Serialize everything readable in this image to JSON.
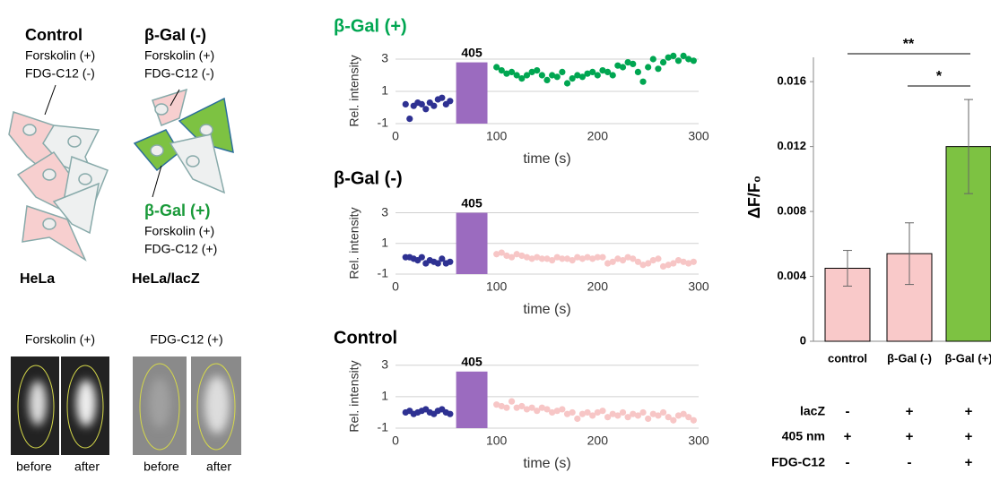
{
  "illustration": {
    "control": {
      "title": "Control",
      "lines": [
        "Forskolin (+)",
        "FDG-C12 (-)"
      ]
    },
    "gal_neg": {
      "title": "β-Gal (-)",
      "lines": [
        "Forskolin (+)",
        "FDG-C12 (-)"
      ]
    },
    "gal_pos": {
      "title": "β-Gal (+)",
      "lines": [
        "Forskolin (+)",
        "FDG-C12 (+)"
      ]
    },
    "cell_lines": [
      "HeLa",
      "HeLa/lacZ"
    ],
    "image_titles": [
      "Forskolin (+)",
      "FDG-C12 (+)"
    ],
    "image_labels": [
      "before",
      "after",
      "before",
      "after"
    ]
  },
  "chart_data": [
    {
      "type": "scatter",
      "title": "β-Gal (+)",
      "title_color": "#00a651",
      "x_label": "time (s)",
      "y_label": "Rel. intensity",
      "xlim": [
        0,
        300
      ],
      "xticks": [
        0,
        100,
        200,
        300
      ],
      "ylim": [
        -1,
        3.5
      ],
      "yticks": [
        -1,
        1,
        3
      ],
      "grid": true,
      "band": {
        "label": "405",
        "x": [
          60,
          91
        ],
        "y": [
          -1,
          2.8
        ],
        "color": "#9b6bbf"
      },
      "series": [
        {
          "color": "#2e3192",
          "x": [
            10,
            14,
            18,
            22,
            26,
            30,
            34,
            38,
            42,
            46,
            50,
            54
          ],
          "values": [
            0.2,
            -0.7,
            0.1,
            0.3,
            0.2,
            -0.1,
            0.3,
            0.1,
            0.5,
            0.6,
            0.2,
            0.4
          ]
        },
        {
          "color": "#00a651",
          "x": [
            100,
            105,
            110,
            115,
            120,
            125,
            130,
            135,
            140,
            145,
            150,
            155,
            160,
            165,
            170,
            175,
            180,
            185,
            190,
            195,
            200,
            205,
            210,
            215,
            220,
            225,
            230,
            235,
            240,
            245,
            250,
            255,
            260,
            265,
            270,
            275,
            280,
            285,
            290,
            295
          ],
          "values": [
            2.5,
            2.3,
            2.1,
            2.2,
            2.0,
            1.8,
            2.0,
            2.2,
            2.3,
            2.0,
            1.7,
            2.0,
            1.9,
            2.2,
            1.5,
            1.8,
            2.0,
            1.9,
            2.1,
            2.2,
            2.0,
            2.3,
            2.2,
            2.0,
            2.6,
            2.5,
            2.8,
            2.7,
            2.2,
            1.6,
            2.5,
            3.0,
            2.4,
            2.8,
            3.1,
            3.2,
            2.9,
            3.2,
            3.0,
            2.9
          ]
        }
      ]
    },
    {
      "type": "scatter",
      "title": "β-Gal (-)",
      "title_color": "#000000",
      "x_label": "time (s)",
      "y_label": "Rel. intensity",
      "xlim": [
        0,
        300
      ],
      "xticks": [
        0,
        100,
        200,
        300
      ],
      "ylim": [
        -1,
        3.5
      ],
      "yticks": [
        -1,
        1,
        3
      ],
      "grid": true,
      "band": {
        "label": "405",
        "x": [
          60,
          91
        ],
        "y": [
          -1,
          3
        ],
        "color": "#9b6bbf"
      },
      "series": [
        {
          "color": "#2e3192",
          "x": [
            10,
            14,
            18,
            22,
            26,
            30,
            34,
            38,
            42,
            46,
            50,
            54
          ],
          "values": [
            0.1,
            0.1,
            0,
            -0.1,
            0.1,
            -0.3,
            -0.1,
            -0.2,
            -0.3,
            0,
            -0.3,
            -0.2
          ]
        },
        {
          "color": "#f7c6c6",
          "x": [
            100,
            105,
            110,
            115,
            120,
            125,
            130,
            135,
            140,
            145,
            150,
            155,
            160,
            165,
            170,
            175,
            180,
            185,
            190,
            195,
            200,
            205,
            210,
            215,
            220,
            225,
            230,
            235,
            240,
            245,
            250,
            255,
            260,
            265,
            270,
            275,
            280,
            285,
            290,
            295
          ],
          "values": [
            0.3,
            0.4,
            0.2,
            0.1,
            0.3,
            0.2,
            0.1,
            0,
            0.1,
            0,
            0,
            -0.1,
            0.1,
            0,
            0,
            -0.1,
            0.1,
            0,
            0.1,
            0,
            0.1,
            0.1,
            -0.3,
            -0.2,
            0,
            -0.1,
            0.1,
            0,
            -0.2,
            -0.4,
            -0.3,
            -0.1,
            0,
            -0.5,
            -0.4,
            -0.3,
            -0.1,
            -0.2,
            -0.3,
            -0.2
          ]
        }
      ]
    },
    {
      "type": "scatter",
      "title": "Control",
      "title_color": "#000000",
      "x_label": "time (s)",
      "y_label": "Rel. intensity",
      "xlim": [
        0,
        300
      ],
      "xticks": [
        0,
        100,
        200,
        300
      ],
      "ylim": [
        -1,
        3.5
      ],
      "yticks": [
        -1,
        1,
        3
      ],
      "grid": true,
      "band": {
        "label": "405",
        "x": [
          60,
          91
        ],
        "y": [
          -1,
          2.6
        ],
        "color": "#9b6bbf"
      },
      "series": [
        {
          "color": "#2e3192",
          "x": [
            10,
            14,
            18,
            22,
            26,
            30,
            34,
            38,
            42,
            46,
            50,
            54
          ],
          "values": [
            0,
            0.1,
            -0.1,
            0,
            0.1,
            0.2,
            0,
            -0.1,
            0.1,
            0.2,
            0,
            -0.1
          ]
        },
        {
          "color": "#f7c6c6",
          "x": [
            100,
            105,
            110,
            115,
            120,
            125,
            130,
            135,
            140,
            145,
            150,
            155,
            160,
            165,
            170,
            175,
            180,
            185,
            190,
            195,
            200,
            205,
            210,
            215,
            220,
            225,
            230,
            235,
            240,
            245,
            250,
            255,
            260,
            265,
            270,
            275,
            280,
            285,
            290,
            295
          ],
          "values": [
            0.5,
            0.4,
            0.3,
            0.7,
            0.3,
            0.4,
            0.2,
            0.3,
            0.1,
            0.3,
            0.2,
            0,
            0.1,
            0.2,
            -0.1,
            0,
            -0.4,
            -0.1,
            0,
            -0.2,
            0,
            0.1,
            -0.3,
            -0.1,
            -0.2,
            0,
            -0.3,
            -0.1,
            -0.2,
            0,
            -0.4,
            -0.1,
            -0.2,
            0,
            -0.3,
            -0.5,
            -0.2,
            -0.1,
            -0.3,
            -0.5
          ]
        }
      ]
    },
    {
      "type": "bar",
      "y_label": "ΔF/F₀",
      "categories": [
        "control",
        "β-Gal (-)",
        "β-Gal (+)"
      ],
      "values": [
        0.0045,
        0.0054,
        0.012
      ],
      "errors": [
        0.0011,
        0.0019,
        0.0029
      ],
      "colors": [
        "#f9c9c9",
        "#f9c9c9",
        "#7dc242"
      ],
      "ylim": [
        0,
        0.0175
      ],
      "yticks": [
        0,
        0.004,
        0.008,
        0.012,
        0.016
      ],
      "significance": [
        "**",
        "*"
      ],
      "conditions": [
        {
          "label": "lacZ",
          "marks": [
            "-",
            "+",
            "+"
          ]
        },
        {
          "label": "405 nm",
          "marks": [
            "+",
            "+",
            "+"
          ]
        },
        {
          "label": "FDG-C12",
          "marks": [
            "-",
            "-",
            "+"
          ]
        }
      ]
    }
  ]
}
